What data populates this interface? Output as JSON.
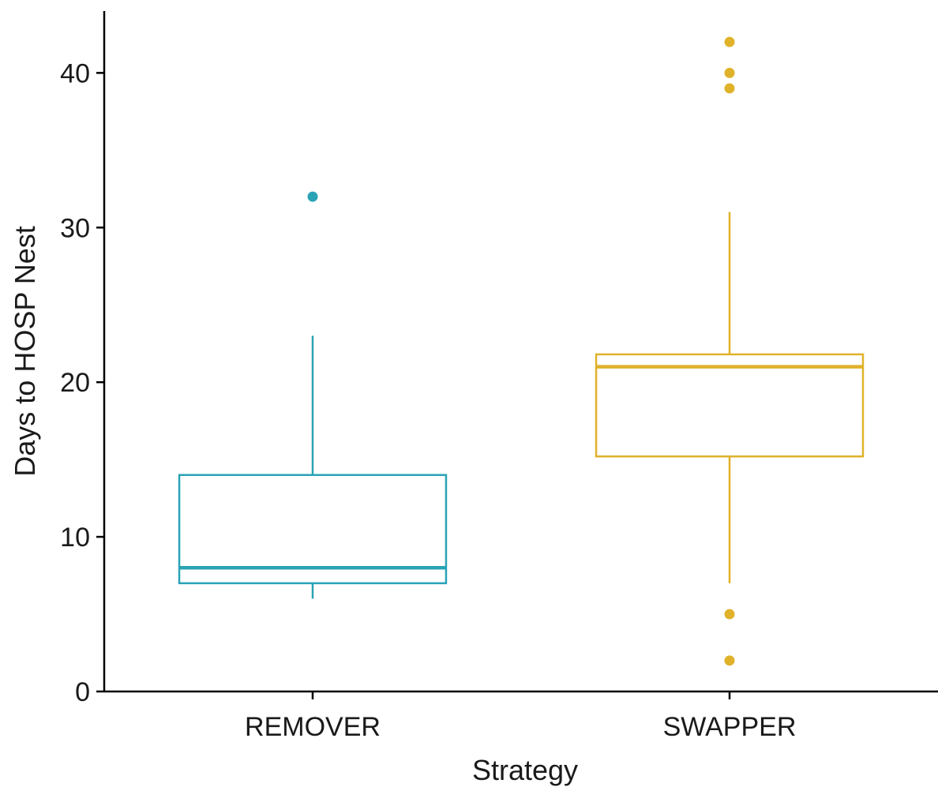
{
  "chart_data": {
    "type": "box",
    "title": "",
    "xlabel": "Strategy",
    "ylabel": "Days to HOSP Nest",
    "ylim": [
      0,
      44
    ],
    "yticks": [
      0,
      10,
      20,
      30,
      40
    ],
    "categories": [
      "REMOVER",
      "SWAPPER"
    ],
    "grid": false,
    "legend": "none",
    "series": [
      {
        "category": "REMOVER",
        "color": "#2aa3b6",
        "whisker_low": 6,
        "q1": 7,
        "median": 8,
        "q3": 14,
        "whisker_high": 23,
        "outliers": [
          32
        ]
      },
      {
        "category": "SWAPPER",
        "color": "#e0b22a",
        "whisker_low": 7,
        "q1": 15.2,
        "median": 21,
        "q3": 21.8,
        "whisker_high": 31,
        "outliers": [
          2,
          5,
          39,
          40,
          42
        ]
      }
    ]
  }
}
